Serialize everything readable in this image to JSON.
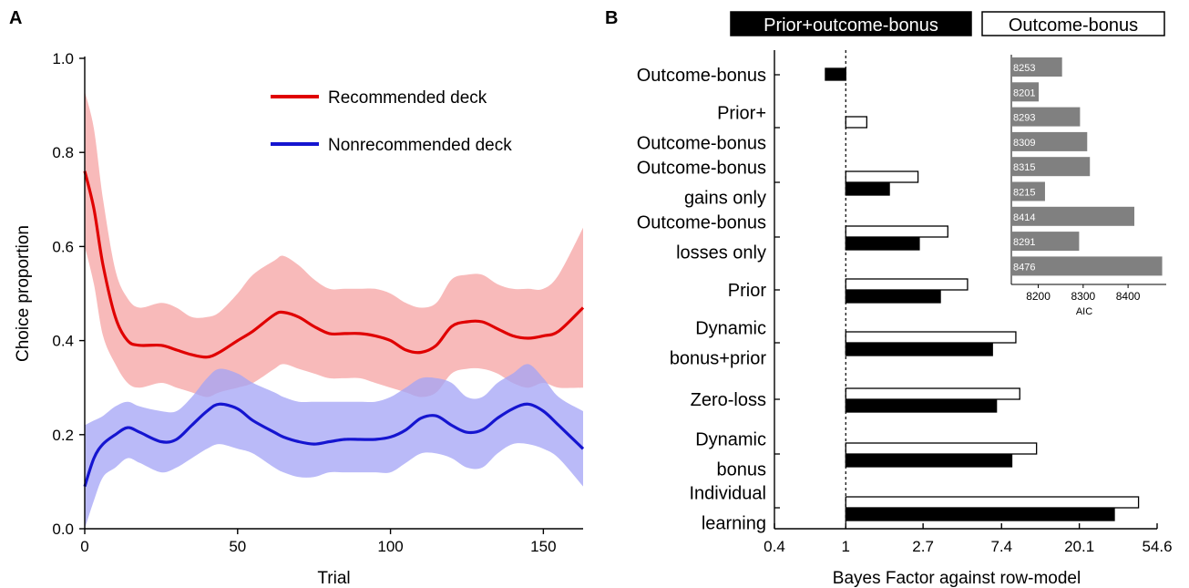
{
  "colors": {
    "recommended": "#e00000",
    "recommended_band": "#f5a3a3",
    "nonrecommended": "#1515d0",
    "nonrecommended_band": "#a3a3f5",
    "dark_bar": "#000000",
    "light_bar": "#ffffff",
    "aic_bar": "#808080"
  },
  "chart_data": [
    {
      "panel": "A",
      "type": "line",
      "xlabel": "Trial",
      "ylabel": "Choice proportion",
      "xlim": [
        0,
        163
      ],
      "ylim": [
        0,
        1
      ],
      "xticks": [
        "0",
        "50",
        "100",
        "150"
      ],
      "yticks": [
        "0.0",
        "0.2",
        "0.4",
        "0.6",
        "0.8",
        "1.0"
      ],
      "legend_position": "top-right",
      "grid": false,
      "x": [
        0,
        3,
        6,
        10,
        14,
        18,
        25,
        30,
        35,
        40,
        44,
        50,
        55,
        62,
        65,
        70,
        75,
        80,
        85,
        90,
        95,
        100,
        105,
        110,
        115,
        120,
        125,
        130,
        135,
        140,
        145,
        150,
        155,
        163
      ],
      "series": [
        {
          "name": "Recommended deck",
          "values": [
            0.76,
            0.68,
            0.56,
            0.45,
            0.4,
            0.39,
            0.39,
            0.38,
            0.37,
            0.365,
            0.375,
            0.4,
            0.42,
            0.455,
            0.46,
            0.45,
            0.43,
            0.415,
            0.415,
            0.415,
            0.41,
            0.4,
            0.38,
            0.375,
            0.39,
            0.43,
            0.44,
            0.44,
            0.425,
            0.41,
            0.405,
            0.41,
            0.42,
            0.47
          ],
          "band_upper": [
            0.93,
            0.85,
            0.7,
            0.55,
            0.49,
            0.47,
            0.48,
            0.47,
            0.45,
            0.45,
            0.46,
            0.5,
            0.54,
            0.57,
            0.58,
            0.56,
            0.53,
            0.51,
            0.51,
            0.51,
            0.51,
            0.5,
            0.48,
            0.47,
            0.48,
            0.53,
            0.54,
            0.54,
            0.52,
            0.51,
            0.51,
            0.51,
            0.54,
            0.64
          ],
          "band_lower": [
            0.6,
            0.52,
            0.41,
            0.35,
            0.31,
            0.3,
            0.31,
            0.3,
            0.29,
            0.28,
            0.29,
            0.3,
            0.31,
            0.34,
            0.35,
            0.34,
            0.33,
            0.32,
            0.32,
            0.32,
            0.31,
            0.3,
            0.29,
            0.28,
            0.29,
            0.33,
            0.34,
            0.34,
            0.33,
            0.31,
            0.3,
            0.31,
            0.3,
            0.3
          ]
        },
        {
          "name": "Nonrecommended deck",
          "values": [
            0.09,
            0.15,
            0.18,
            0.2,
            0.215,
            0.205,
            0.185,
            0.19,
            0.22,
            0.25,
            0.265,
            0.255,
            0.23,
            0.205,
            0.195,
            0.185,
            0.18,
            0.185,
            0.19,
            0.19,
            0.19,
            0.195,
            0.21,
            0.235,
            0.24,
            0.22,
            0.205,
            0.21,
            0.235,
            0.255,
            0.265,
            0.25,
            0.22,
            0.17
          ],
          "band_upper": [
            0.22,
            0.23,
            0.24,
            0.26,
            0.27,
            0.26,
            0.25,
            0.25,
            0.28,
            0.32,
            0.34,
            0.33,
            0.31,
            0.29,
            0.28,
            0.27,
            0.27,
            0.27,
            0.27,
            0.27,
            0.27,
            0.28,
            0.3,
            0.32,
            0.32,
            0.31,
            0.28,
            0.28,
            0.31,
            0.33,
            0.35,
            0.32,
            0.28,
            0.25
          ],
          "band_lower": [
            0.0,
            0.06,
            0.11,
            0.13,
            0.15,
            0.14,
            0.12,
            0.13,
            0.15,
            0.17,
            0.18,
            0.17,
            0.16,
            0.13,
            0.12,
            0.11,
            0.11,
            0.12,
            0.12,
            0.12,
            0.12,
            0.12,
            0.14,
            0.16,
            0.16,
            0.15,
            0.13,
            0.13,
            0.16,
            0.18,
            0.18,
            0.17,
            0.15,
            0.09
          ]
        }
      ]
    },
    {
      "panel": "B",
      "type": "bar",
      "orientation": "horizontal",
      "xlabel": "Bayes Factor against row-model",
      "xscale": "log",
      "xlim": [
        0.4,
        54.6
      ],
      "xticks": [
        "0.4",
        "1",
        "2.7",
        "7.4",
        "20.1",
        "54.6"
      ],
      "reference_line": 1,
      "legend_position": "top",
      "categories": [
        [
          "Outcome-bonus"
        ],
        [
          "Prior+",
          "Outcome-bonus"
        ],
        [
          "Outcome-bonus",
          "gains only"
        ],
        [
          "Outcome-bonus",
          "losses only"
        ],
        [
          "Prior"
        ],
        [
          "Dynamic",
          "bonus+prior"
        ],
        [
          "Zero-loss"
        ],
        [
          "Dynamic",
          "bonus"
        ],
        [
          "Individual",
          "learning"
        ]
      ],
      "series": [
        {
          "name": "Outcome-bonus",
          "values": [
            null,
            1.31,
            2.53,
            3.71,
            4.78,
            8.89,
            9.35,
            11.6,
            43.0
          ]
        },
        {
          "name": "Prior+outcome-bonus",
          "values": [
            0.77,
            null,
            1.75,
            2.57,
            3.37,
            6.58,
            6.93,
            8.44,
            31.5
          ]
        }
      ]
    },
    {
      "panel": "B-inset",
      "type": "bar",
      "orientation": "horizontal",
      "xlabel": "AIC",
      "xlim": [
        8140,
        8485
      ],
      "xticks": [
        "8200",
        "8300",
        "8400"
      ],
      "values": [
        8253,
        8201,
        8293,
        8309,
        8315,
        8215,
        8414,
        8291,
        8476
      ]
    }
  ],
  "panels": {
    "a_label": "A",
    "b_label": "B"
  }
}
